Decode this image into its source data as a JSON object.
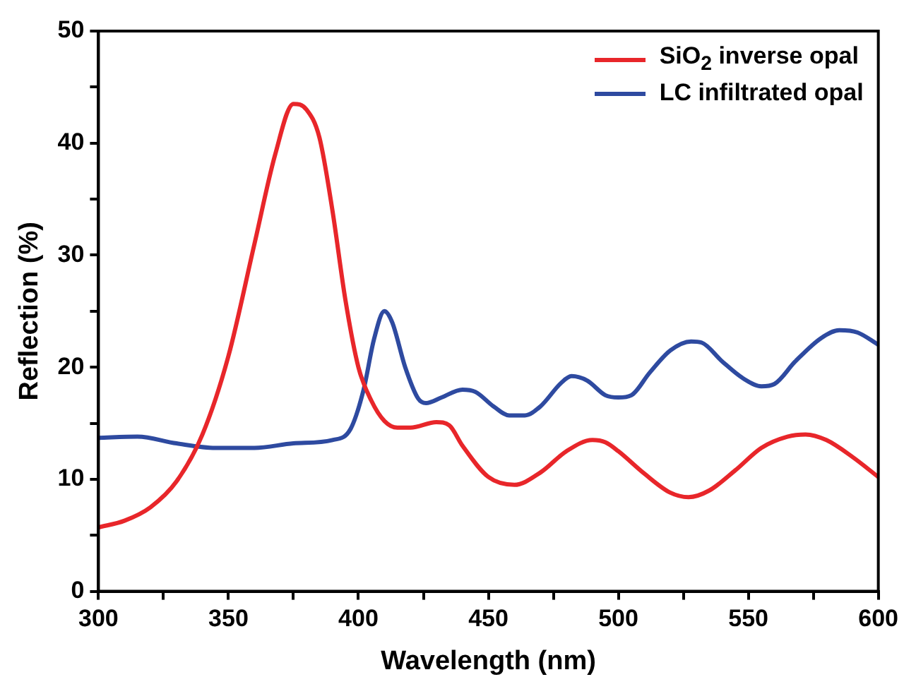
{
  "chart_data": {
    "type": "line",
    "xlabel": "Wavelength (nm)",
    "ylabel": "Reflection (%)",
    "xlim": [
      300,
      600
    ],
    "xticks": [
      300,
      {
        "value": 325,
        "label": null
      },
      350,
      {
        "value": 375,
        "label": null
      },
      400,
      {
        "value": 425,
        "label": null
      },
      450,
      {
        "value": 475,
        "label": null
      },
      500,
      {
        "value": 525,
        "label": null
      },
      550,
      {
        "value": 575,
        "label": null
      },
      600
    ],
    "ylim": [
      0,
      50
    ],
    "yticks": [
      0,
      {
        "value": 5,
        "label": null
      },
      10,
      {
        "value": 15,
        "label": null
      },
      20,
      {
        "value": 25,
        "label": null
      },
      30,
      {
        "value": 35,
        "label": null
      },
      40,
      {
        "value": 45,
        "label": null
      },
      50
    ],
    "grid": false,
    "legend": "top right",
    "marker": "none",
    "line_style": "solid",
    "series": [
      {
        "name": "SiO$_{2}$ inverse opal",
        "color": "#e8262a",
        "x": [
          300,
          310,
          320,
          330,
          340,
          350,
          360,
          368,
          375,
          380,
          385,
          390,
          395,
          400,
          405,
          410,
          415,
          420,
          430,
          435,
          440,
          450,
          460,
          470,
          480,
          490,
          495,
          500,
          510,
          520,
          527,
          535,
          545,
          555,
          565,
          572,
          580,
          590,
          600
        ],
        "values": [
          5.7,
          6.3,
          7.5,
          9.8,
          14,
          21,
          31,
          39,
          43.5,
          43,
          40.5,
          34,
          26,
          20,
          17,
          15.2,
          14.6,
          14.6,
          15.1,
          14.8,
          13,
          10.2,
          9.5,
          10.6,
          12.5,
          13.5,
          13.3,
          12.5,
          10.5,
          8.8,
          8.4,
          9,
          10.8,
          12.8,
          13.8,
          14,
          13.5,
          12,
          10.2
        ]
      },
      {
        "name": "LC infiltrated opal",
        "color": "#2e4aa0",
        "x": [
          300,
          315,
          330,
          345,
          360,
          375,
          390,
          397,
          402,
          406,
          410,
          413,
          418,
          423,
          426,
          432,
          440,
          445,
          452,
          458,
          464,
          470,
          478,
          482,
          488,
          495,
          500,
          505,
          512,
          520,
          528,
          532,
          540,
          548,
          555,
          560,
          568,
          578,
          585,
          592,
          600
        ],
        "values": [
          13.7,
          13.8,
          13.2,
          12.8,
          12.8,
          13.2,
          13.5,
          14.5,
          18,
          22.5,
          25,
          24,
          20,
          17.2,
          16.8,
          17.3,
          18,
          17.8,
          16.5,
          15.7,
          15.7,
          16.5,
          18.6,
          19.2,
          18.8,
          17.5,
          17.3,
          17.5,
          19.5,
          21.5,
          22.3,
          22.2,
          20.5,
          19,
          18.3,
          18.5,
          20.5,
          22.6,
          23.3,
          23.1,
          22
        ]
      }
    ]
  }
}
